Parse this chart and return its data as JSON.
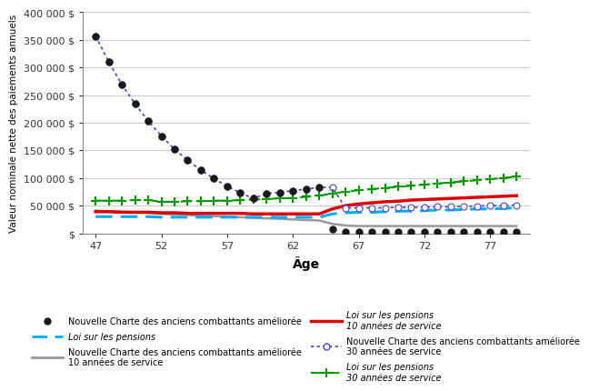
{
  "ages": [
    47,
    48,
    49,
    50,
    51,
    52,
    53,
    54,
    55,
    56,
    57,
    58,
    59,
    60,
    61,
    62,
    63,
    64,
    65,
    66,
    67,
    68,
    69,
    70,
    71,
    72,
    73,
    74,
    75,
    76,
    77,
    78,
    79
  ],
  "ncac_base": [
    357000,
    310000,
    269000,
    234000,
    203000,
    176000,
    152000,
    132000,
    114000,
    99000,
    85000,
    73000,
    63000,
    72000,
    74000,
    77000,
    80000,
    83000,
    7000,
    2000,
    2000,
    2000,
    2000,
    2000,
    2000,
    2000,
    2000,
    2000,
    2000,
    2000,
    2000,
    2000,
    2000
  ],
  "ncac_10": [
    41000,
    40000,
    39000,
    38000,
    37000,
    35000,
    34000,
    33000,
    32000,
    31000,
    30000,
    29000,
    28000,
    27000,
    26000,
    25000,
    24000,
    23000,
    17000,
    14000,
    13000,
    13000,
    13000,
    13000,
    13000,
    13000,
    13000,
    13000,
    13000,
    13000,
    13000,
    13000,
    13000
  ],
  "ncac_30": [
    357000,
    310000,
    269000,
    234000,
    203000,
    176000,
    152000,
    132000,
    114000,
    99000,
    85000,
    73000,
    63000,
    72000,
    74000,
    77000,
    80000,
    83000,
    83000,
    46000,
    46000,
    46000,
    46000,
    47000,
    47000,
    47000,
    48000,
    48000,
    49000,
    49000,
    50000,
    50000,
    51000
  ],
  "loi_base": [
    30000,
    30000,
    30000,
    30000,
    30000,
    29000,
    29000,
    29000,
    29000,
    29000,
    29000,
    29000,
    29000,
    29000,
    29000,
    29000,
    29000,
    29000,
    35000,
    37000,
    38000,
    38000,
    39000,
    40000,
    40000,
    41000,
    42000,
    42000,
    43000,
    44000,
    44000,
    45000,
    46000
  ],
  "loi_10": [
    39000,
    39000,
    38000,
    38000,
    38000,
    37000,
    37000,
    36000,
    36000,
    36000,
    36000,
    36000,
    35000,
    35000,
    35000,
    35000,
    35000,
    35000,
    44000,
    50000,
    53000,
    55000,
    57000,
    58000,
    60000,
    61000,
    62000,
    63000,
    64000,
    65000,
    66000,
    67000,
    68000
  ],
  "loi_30": [
    59000,
    59000,
    59000,
    60000,
    60000,
    57000,
    57000,
    58000,
    58000,
    59000,
    59000,
    60000,
    61000,
    62000,
    63000,
    64000,
    66000,
    68000,
    72000,
    75000,
    78000,
    80000,
    82000,
    84000,
    86000,
    88000,
    90000,
    92000,
    94000,
    96000,
    98000,
    100000,
    103000
  ],
  "xlabel": "Âge",
  "ylabel": "Valeur nominale nette des paiements annuels",
  "ylim": [
    0,
    400000
  ],
  "yticks": [
    0,
    50000,
    100000,
    150000,
    200000,
    250000,
    300000,
    350000,
    400000
  ],
  "xticks": [
    47,
    52,
    57,
    62,
    67,
    72,
    77
  ],
  "bg_color": "#ffffff",
  "grid_color": "#cccccc",
  "color_ncac_base": "#1a1a1a",
  "color_ncac_10": "#999999",
  "color_ncac_30": "#4444cc",
  "color_loi_base": "#00aaff",
  "color_loi_10": "#dd0000",
  "color_loi_30": "#009900",
  "legend_labels": [
    "Nouvelle Charte des anciens combattants améliorée",
    "Loi sur les pensions",
    "Nouvelle Charte des anciens combattants améliorée\n10 années de service",
    "Loi sur les pensions\n10 années de service",
    "Nouvelle Charte des anciens combattants améliorée\n30 années de service",
    "Loi sur les pensions\n30 années de service"
  ]
}
